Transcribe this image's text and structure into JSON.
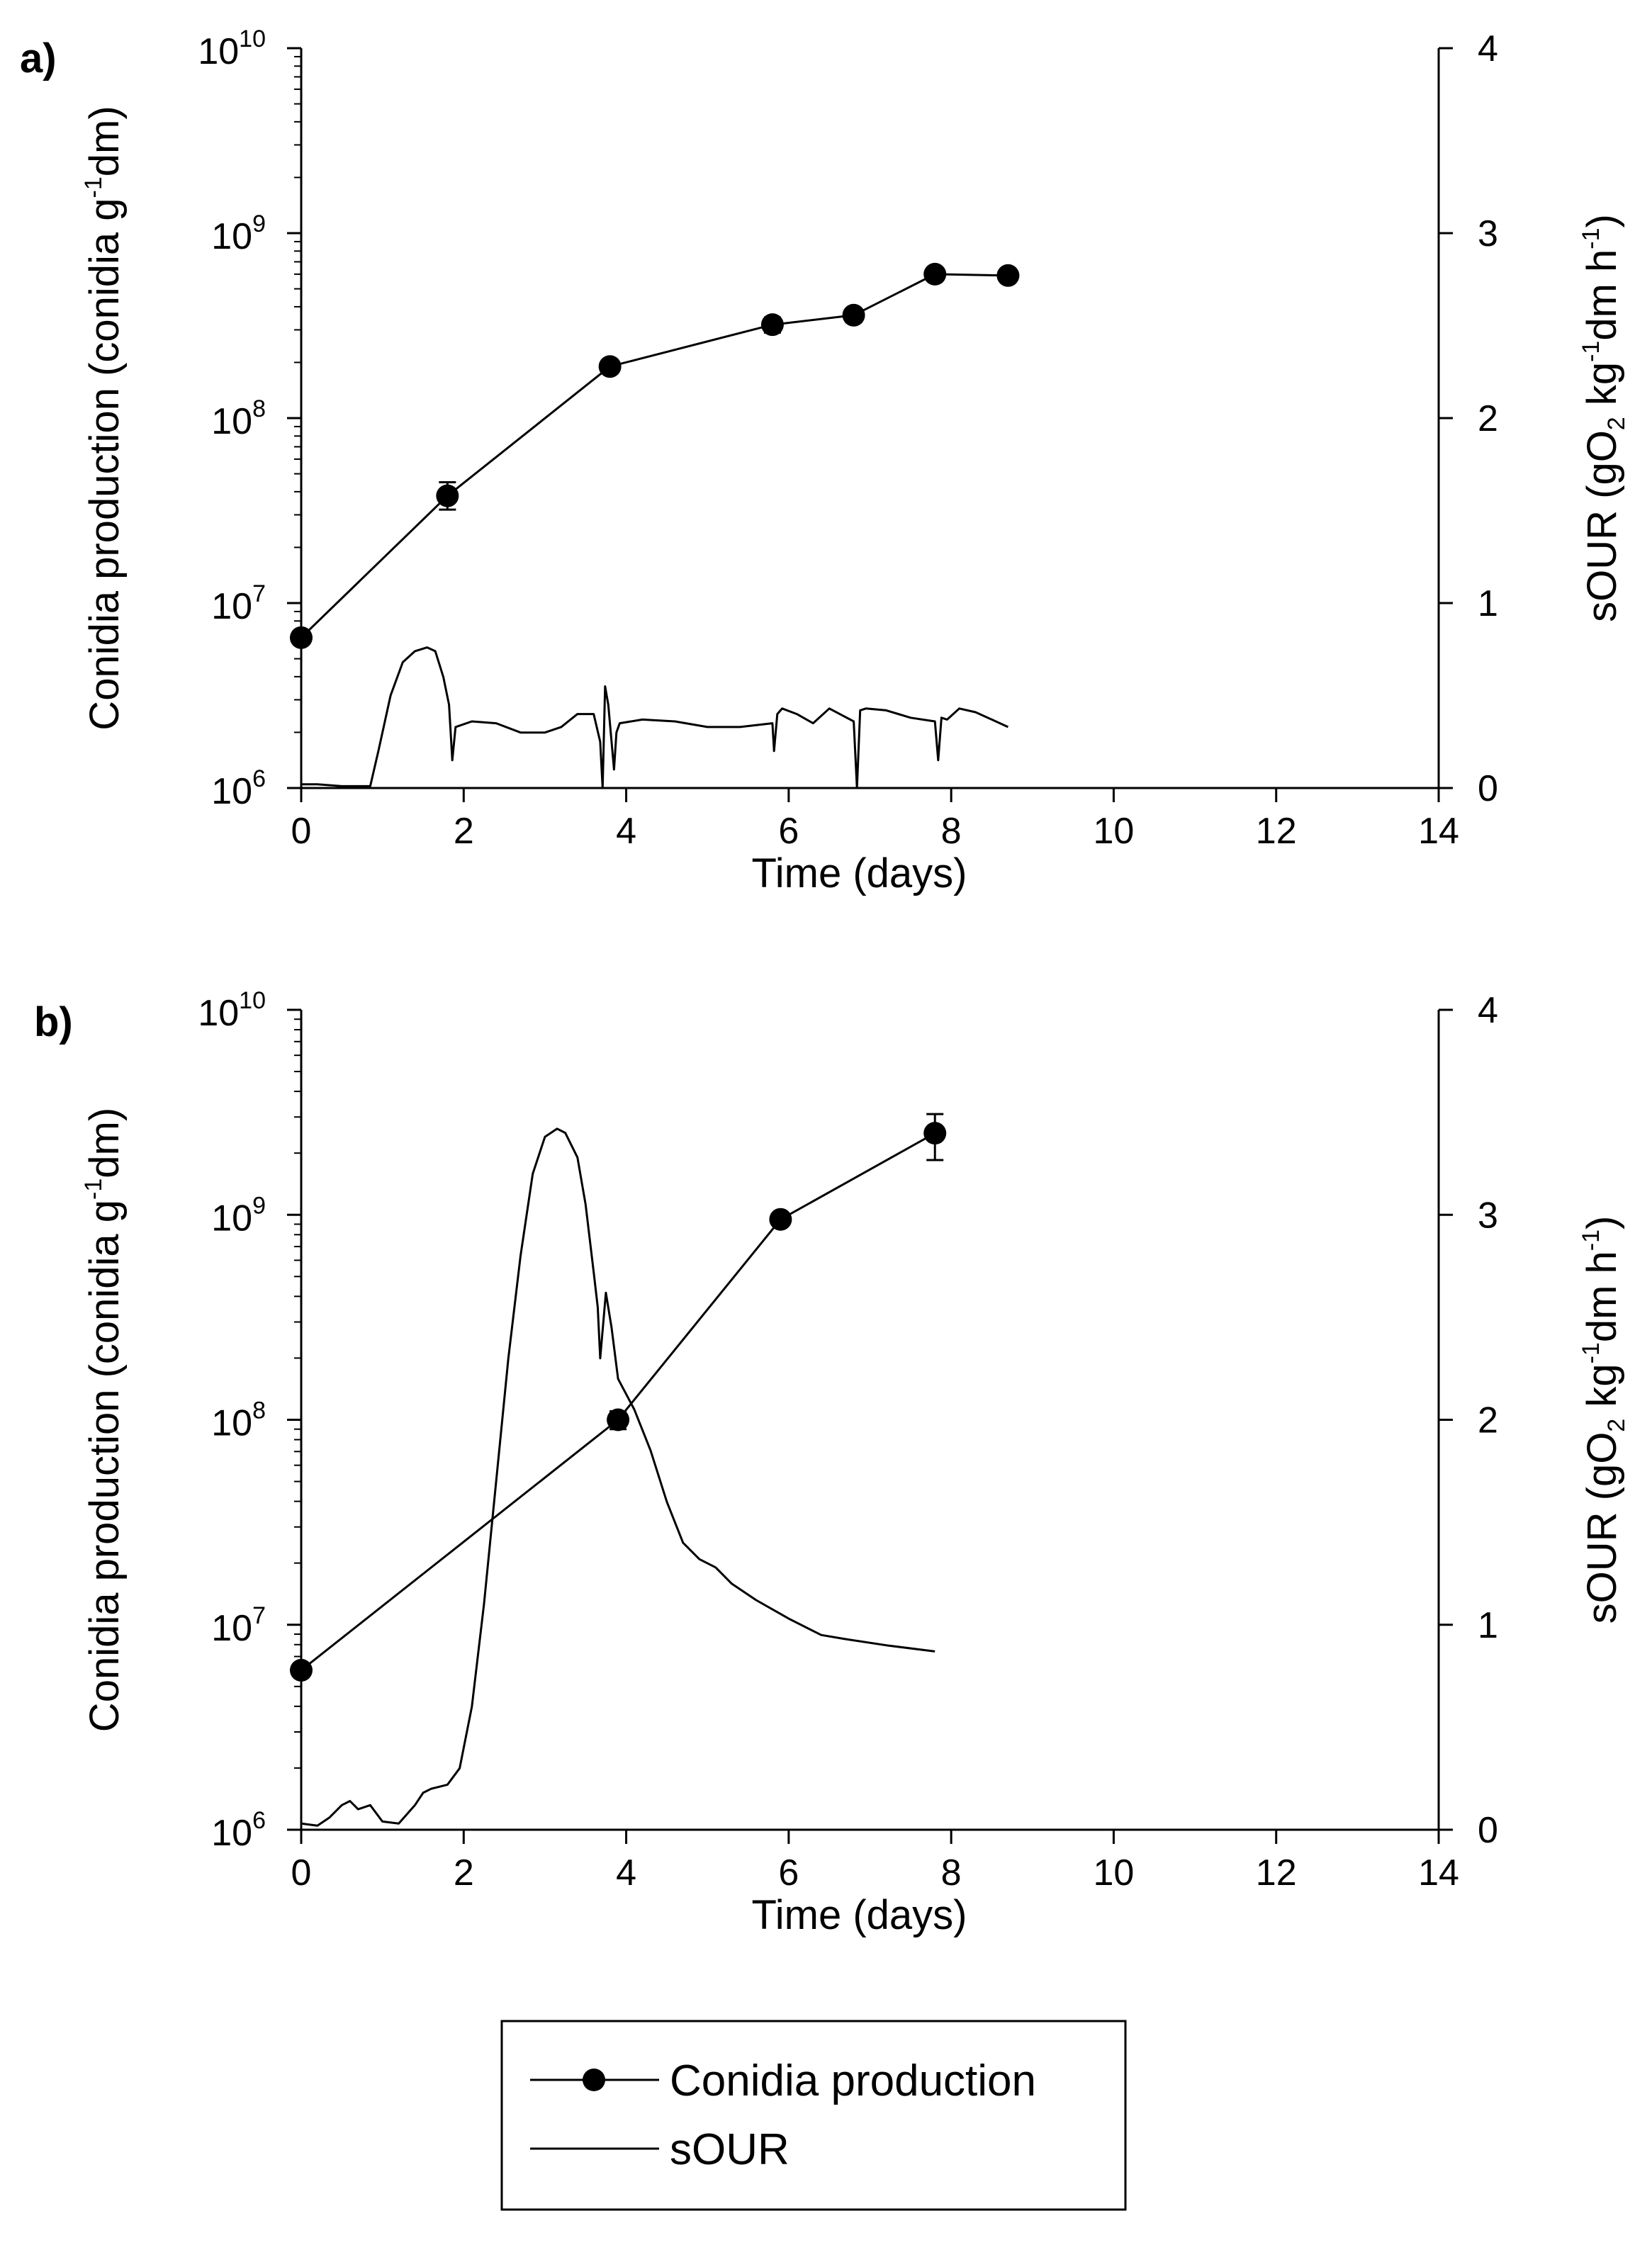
{
  "chart_data": [
    {
      "type": "line",
      "panel_label": "a)",
      "x": {
        "label": "Time (days)",
        "range": [
          0,
          14
        ],
        "ticks": [
          "0",
          "2",
          "4",
          "6",
          "8",
          "10",
          "12",
          "14"
        ]
      },
      "y_left": {
        "label_parts": [
          "Conidia production (conidia g",
          "-1",
          "dm)"
        ],
        "scale": "log",
        "range": [
          1000000.0,
          10000000000.0
        ],
        "ticks": [
          {
            "base": "10",
            "exp": "6"
          },
          {
            "base": "10",
            "exp": "7"
          },
          {
            "base": "10",
            "exp": "8"
          },
          {
            "base": "10",
            "exp": "9"
          },
          {
            "base": "10",
            "exp": "10"
          }
        ]
      },
      "y_right": {
        "label_parts": [
          "sOUR (gO",
          "2",
          " kg",
          "-1",
          "dm h",
          "-1",
          ")"
        ],
        "range": [
          0,
          4
        ],
        "ticks": [
          "0",
          "1",
          "2",
          "3",
          "4"
        ]
      },
      "series": [
        {
          "name": "Conidia production",
          "axis": "left",
          "marker": "circle",
          "x": [
            0,
            1.8,
            3.8,
            5.8,
            6.8,
            7.8,
            8.7
          ],
          "y": [
            6500000.0,
            38000000.0,
            190000000.0,
            320000000.0,
            360000000.0,
            600000000.0,
            590000000.0
          ],
          "err_low": [
            6000000.0,
            32000000.0,
            175000000.0,
            290000000.0,
            330000000.0,
            560000000.0,
            550000000.0
          ],
          "err_high": [
            7000000.0,
            45000000.0,
            205000000.0,
            350000000.0,
            390000000.0,
            640000000.0,
            630000000.0
          ]
        },
        {
          "name": "sOUR",
          "axis": "right",
          "marker": "none",
          "x": [
            0,
            0.2,
            0.5,
            0.85,
            0.95,
            1.1,
            1.25,
            1.4,
            1.55,
            1.65,
            1.75,
            1.82,
            1.86,
            1.9,
            2.1,
            2.4,
            2.7,
            3.0,
            3.2,
            3.4,
            3.6,
            3.68,
            3.71,
            3.74,
            3.78,
            3.85,
            3.88,
            3.92,
            4.2,
            4.6,
            5.0,
            5.4,
            5.8,
            5.82,
            5.86,
            5.92,
            6.1,
            6.3,
            6.5,
            6.8,
            6.84,
            6.88,
            6.95,
            7.2,
            7.5,
            7.8,
            7.84,
            7.88,
            7.95,
            8.1,
            8.3,
            8.5,
            8.7
          ],
          "y": [
            0.02,
            0.02,
            0.01,
            0.01,
            0.2,
            0.5,
            0.68,
            0.74,
            0.76,
            0.74,
            0.6,
            0.45,
            0.15,
            0.33,
            0.36,
            0.35,
            0.3,
            0.3,
            0.33,
            0.4,
            0.4,
            0.25,
            0.0,
            0.55,
            0.45,
            0.1,
            0.3,
            0.35,
            0.37,
            0.36,
            0.33,
            0.33,
            0.35,
            0.2,
            0.4,
            0.43,
            0.4,
            0.35,
            0.43,
            0.36,
            0.0,
            0.42,
            0.43,
            0.42,
            0.38,
            0.36,
            0.15,
            0.38,
            0.37,
            0.43,
            0.41,
            0.37,
            0.33
          ]
        }
      ]
    },
    {
      "type": "line",
      "panel_label": "b)",
      "x": {
        "label": "Time (days)",
        "range": [
          0,
          14
        ],
        "ticks": [
          "0",
          "2",
          "4",
          "6",
          "8",
          "10",
          "12",
          "14"
        ]
      },
      "y_left": {
        "label_parts": [
          "Conidia production (conidia g",
          "-1",
          "dm)"
        ],
        "scale": "log",
        "range": [
          1000000.0,
          10000000000.0
        ],
        "ticks": [
          {
            "base": "10",
            "exp": "6"
          },
          {
            "base": "10",
            "exp": "7"
          },
          {
            "base": "10",
            "exp": "8"
          },
          {
            "base": "10",
            "exp": "9"
          },
          {
            "base": "10",
            "exp": "10"
          }
        ]
      },
      "y_right": {
        "label_parts": [
          "sOUR (gO",
          "2",
          " kg",
          "-1",
          "dm h",
          "-1",
          ")"
        ],
        "range": [
          0,
          4
        ],
        "ticks": [
          "0",
          "1",
          "2",
          "3",
          "4"
        ]
      },
      "series": [
        {
          "name": "Conidia production",
          "axis": "left",
          "marker": "circle",
          "x": [
            0,
            3.9,
            5.9,
            7.8
          ],
          "y": [
            6000000.0,
            100000000.0,
            950000000.0,
            2500000000.0
          ],
          "err_low": [
            5600000.0,
            90000000.0,
            880000000.0,
            1850000000.0
          ],
          "err_high": [
            6400000.0,
            110000000.0,
            1020000000.0,
            3100000000.0
          ],
          "err_bar_visible": [
            false,
            true,
            false,
            true
          ]
        },
        {
          "name": "sOUR",
          "axis": "right",
          "marker": "none",
          "x": [
            0,
            0.2,
            0.35,
            0.5,
            0.6,
            0.7,
            0.85,
            1.0,
            1.2,
            1.4,
            1.5,
            1.6,
            1.8,
            1.95,
            2.1,
            2.25,
            2.4,
            2.55,
            2.7,
            2.85,
            3.0,
            3.15,
            3.25,
            3.4,
            3.5,
            3.6,
            3.65,
            3.68,
            3.75,
            3.82,
            3.9,
            4.1,
            4.3,
            4.5,
            4.7,
            4.9,
            5.1,
            5.3,
            5.6,
            6.0,
            6.4,
            6.7,
            7.2,
            7.8
          ],
          "y": [
            0.03,
            0.02,
            0.06,
            0.12,
            0.14,
            0.1,
            0.12,
            0.04,
            0.03,
            0.12,
            0.18,
            0.2,
            0.22,
            0.3,
            0.6,
            1.1,
            1.7,
            2.3,
            2.8,
            3.2,
            3.38,
            3.42,
            3.4,
            3.28,
            3.05,
            2.72,
            2.55,
            2.3,
            2.62,
            2.45,
            2.2,
            2.05,
            1.85,
            1.6,
            1.4,
            1.32,
            1.28,
            1.2,
            1.12,
            1.03,
            0.95,
            0.93,
            0.9,
            0.87
          ]
        }
      ]
    }
  ],
  "legend": {
    "items": [
      {
        "label": "Conidia production",
        "marker": "circle-line"
      },
      {
        "label": "sOUR",
        "marker": "line"
      }
    ]
  }
}
